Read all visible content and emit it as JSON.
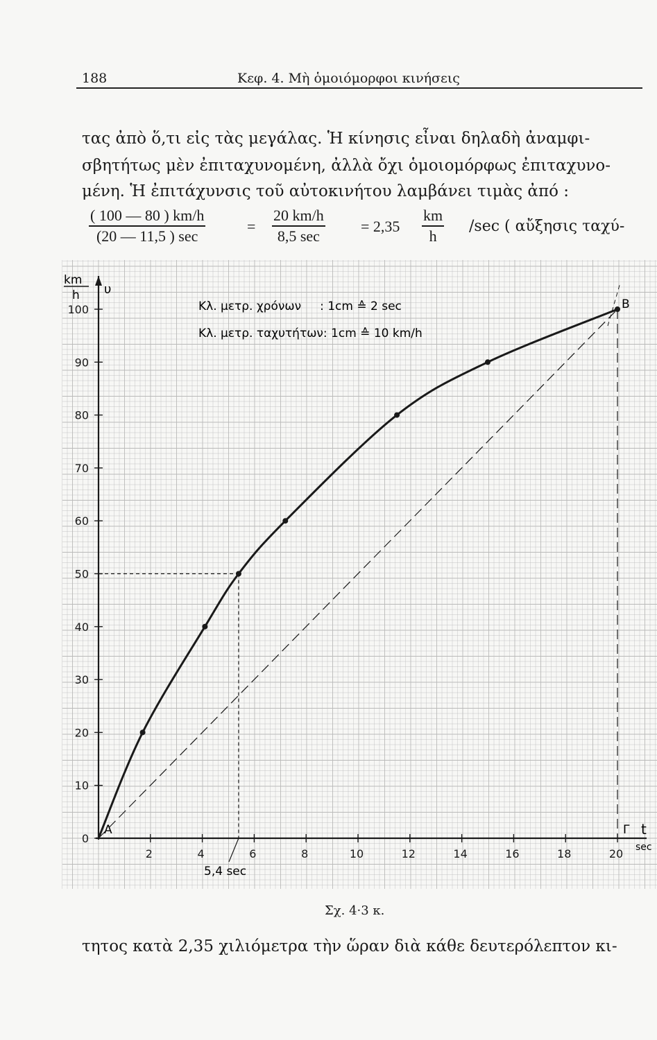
{
  "header": {
    "page_number": "188",
    "running_title": "Κεφ. 4. Μὴ ὁμοιόμορφοι κινήσεις"
  },
  "paragraph": {
    "line1": "τας ἀπὸ ὅ,τι εἰς τὰς μεγάλας. Ἡ κίνησις εἶναι δηλαδὴ ἀναμφι-",
    "line2": "σβητήτως μὲν ἐπιταχυνομένη, ἀλλὰ ὄχι ὁμοιομόρφως ἐπιταχυνο-",
    "line3": "μένη. Ἡ ἐπιτάχυνσις τοῦ αὐτοκινήτου λαμβάνει τιμὰς ἀπό :"
  },
  "equation": {
    "frac1_num": "( 100 — 80 ) km/h",
    "frac1_den": "(20 — 11,5 ) sec",
    "equals1": "=",
    "frac2_num": "20 km/h",
    "frac2_den": "8,5 sec",
    "equals2": "= 2,35",
    "frac3_num": "km",
    "frac3_den": "h",
    "tail": "/sec  ( αὔξησις ταχύ-"
  },
  "chart_data": {
    "type": "line",
    "xlabel": "t",
    "xunit": "sec",
    "ylabel": "υ",
    "yunit_num": "km",
    "yunit_den": "h",
    "xlim": [
      0,
      20
    ],
    "ylim": [
      0,
      100
    ],
    "x_ticks": [
      "2",
      "4",
      "6",
      "8",
      "10",
      "12",
      "14",
      "16",
      "18",
      "20"
    ],
    "y_ticks": [
      "0",
      "10",
      "20",
      "30",
      "40",
      "50",
      "60",
      "70",
      "80",
      "90",
      "100"
    ],
    "series": [
      {
        "x": [
          0,
          1.7,
          4.1,
          5.4,
          7.2,
          11.5,
          15.0,
          20.0
        ],
        "y": [
          0,
          20,
          40,
          50,
          60,
          80,
          90,
          100
        ]
      }
    ],
    "chord": {
      "from": [
        0,
        0
      ],
      "to": [
        20,
        100
      ]
    },
    "guide_point": {
      "x": 5.4,
      "y": 50
    },
    "point_labels": {
      "start": "A",
      "end": "B",
      "foot": "Γ"
    },
    "annotation": "5,4 sec",
    "legend_line1": "Κλ. μετρ. χρόνων     : 1cm ≙ 2 sec",
    "legend_line2": "Κλ. μετρ. ταχυτήτων: 1cm ≙ 10 km/h",
    "grid": true
  },
  "caption": "Σχ. 4·3 κ.",
  "last_line": "τητος κατὰ 2,35 χιλιόμετρα τὴν ὥραν διὰ κάθε δευτερόλεπτον κι-",
  "colors": {
    "ink": "#1a1a1a",
    "grid": "#b9b9b9",
    "paper": "#f7f7f5"
  }
}
